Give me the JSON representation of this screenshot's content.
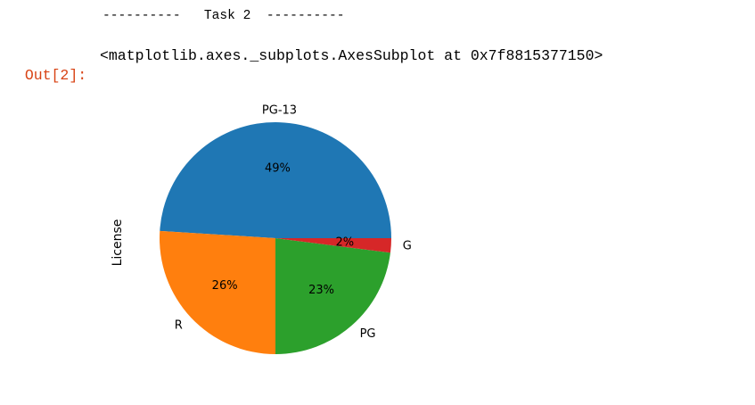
{
  "cell": {
    "stdout_line": "----------   Task 2  ----------",
    "out_prompt": "Out[2]:",
    "out_repr": "<matplotlib.axes._subplots.AxesSubplot at 0x7f8815377150>"
  },
  "chart_data": {
    "type": "pie",
    "ylabel": "License",
    "labels": [
      "PG-13",
      "R",
      "PG",
      "G"
    ],
    "values": [
      49,
      26,
      23,
      2
    ],
    "pct_labels": [
      "49%",
      "26%",
      "23%",
      "2%"
    ],
    "colors": [
      "#1f77b4",
      "#ff7f0e",
      "#2ca02c",
      "#d62728"
    ],
    "start_angle_deg": 0,
    "direction": "counterclockwise"
  }
}
